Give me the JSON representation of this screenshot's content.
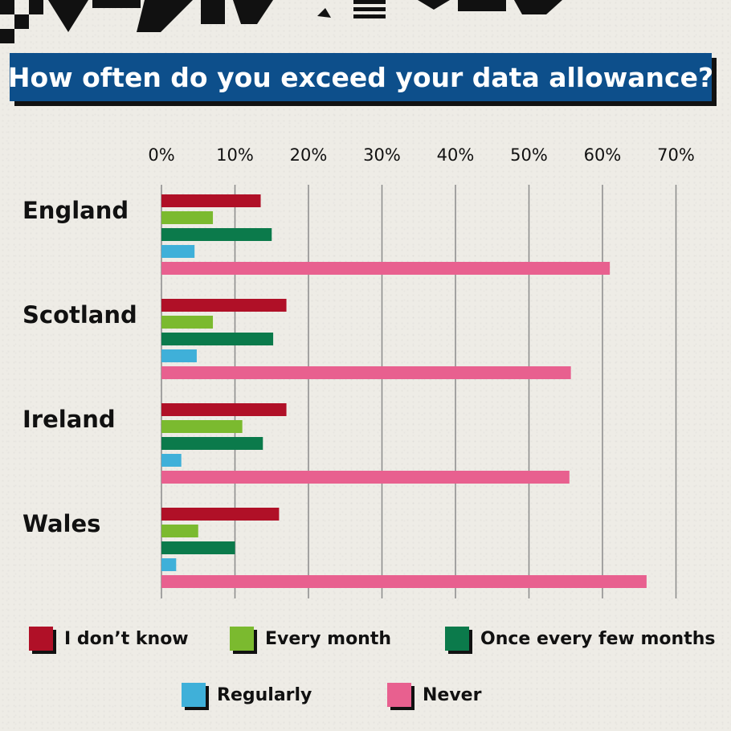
{
  "chart_data": {
    "type": "bar",
    "orientation": "horizontal",
    "title": "How often do you exceed your data allowance?",
    "categories": [
      "England",
      "Scotland",
      "Ireland",
      "Wales"
    ],
    "x_ticks": [
      "0%",
      "10%",
      "20%",
      "30%",
      "40%",
      "50%",
      "60%",
      "70%"
    ],
    "xlim": [
      0,
      70
    ],
    "grid": true,
    "legend_placement": "bottom",
    "series": [
      {
        "name": "I don’t know",
        "color": "#b01027",
        "values": [
          13.5,
          17,
          17,
          16
        ]
      },
      {
        "name": "Every month",
        "color": "#7bba2f",
        "values": [
          7,
          7,
          11,
          5
        ]
      },
      {
        "name": "Once every few months",
        "color": "#0b7a4b",
        "values": [
          15,
          15.2,
          13.8,
          10
        ]
      },
      {
        "name": "Regularly",
        "color": "#3fb0d9",
        "values": [
          4.5,
          4.8,
          2.7,
          2
        ]
      },
      {
        "name": "Never",
        "color": "#e8608f",
        "values": [
          61,
          55.7,
          55.5,
          66
        ]
      }
    ]
  }
}
